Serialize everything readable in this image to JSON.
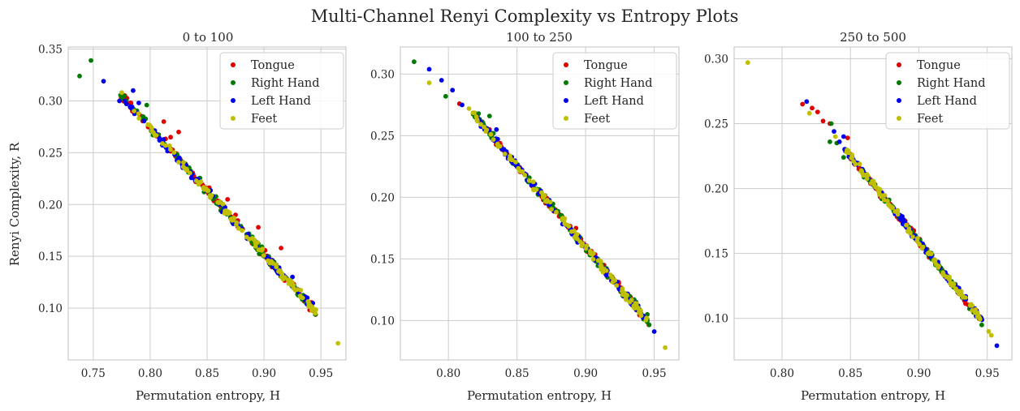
{
  "figure": {
    "suptitle": "Multi-Channel Renyi Complexity vs Entropy Plots"
  },
  "colors": {
    "Tongue": "#e00000",
    "Right Hand": "#007a00",
    "Left Hand": "#0000ee",
    "Feet": "#bfbf00"
  },
  "chart_data": [
    {
      "type": "scatter",
      "title": "0 to 100",
      "xlabel": "Permutation entropy, H",
      "ylabel": "Renyi Complexity, R",
      "xlim": [
        0.728,
        0.972
      ],
      "ylim": [
        0.05,
        0.352
      ],
      "xticks": [
        0.75,
        0.8,
        0.85,
        0.9,
        0.95
      ],
      "yticks": [
        0.1,
        0.15,
        0.2,
        0.25,
        0.3,
        0.35
      ],
      "grid": true,
      "legend": "top-right",
      "trend": {
        "x0": 0.775,
        "y0": 0.305,
        "x1": 0.945,
        "y1": 0.097,
        "spread": 0.006
      },
      "series": [
        {
          "name": "Tongue",
          "points": [
            [
              0.812,
              0.28
            ],
            [
              0.818,
              0.265
            ],
            [
              0.825,
              0.27
            ],
            [
              0.84,
              0.222
            ],
            [
              0.868,
              0.205
            ],
            [
              0.875,
              0.19
            ],
            [
              0.895,
              0.178
            ],
            [
              0.915,
              0.158
            ]
          ]
        },
        {
          "name": "Right Hand",
          "points": [
            [
              0.738,
              0.324
            ],
            [
              0.748,
              0.339
            ],
            [
              0.797,
              0.296
            ],
            [
              0.88,
              0.178
            ],
            [
              0.945,
              0.094
            ]
          ]
        },
        {
          "name": "Left Hand",
          "points": [
            [
              0.759,
              0.319
            ],
            [
              0.773,
              0.3
            ],
            [
              0.785,
              0.31
            ],
            [
              0.79,
              0.298
            ],
            [
              0.925,
              0.13
            ],
            [
              0.938,
              0.11
            ]
          ]
        },
        {
          "name": "Feet",
          "points": [
            [
              0.775,
              0.308
            ],
            [
              0.945,
              0.095
            ],
            [
              0.965,
              0.066
            ]
          ]
        }
      ]
    },
    {
      "type": "scatter",
      "title": "100 to 250",
      "xlabel": "Permutation entropy, H",
      "ylabel": "",
      "xlim": [
        0.765,
        0.968
      ],
      "ylim": [
        0.068,
        0.322
      ],
      "xticks": [
        0.8,
        0.85,
        0.9,
        0.95
      ],
      "yticks": [
        0.1,
        0.15,
        0.2,
        0.25,
        0.3
      ],
      "grid": true,
      "legend": "top-right",
      "trend": {
        "x0": 0.818,
        "y0": 0.268,
        "x1": 0.945,
        "y1": 0.1,
        "spread": 0.005
      },
      "series": [
        {
          "name": "Tongue",
          "points": [
            [
              0.808,
              0.276
            ],
            [
              0.83,
              0.255
            ],
            [
              0.878,
              0.19
            ],
            [
              0.893,
              0.175
            ],
            [
              0.945,
              0.1
            ]
          ]
        },
        {
          "name": "Right Hand",
          "points": [
            [
              0.775,
              0.31
            ],
            [
              0.798,
              0.282
            ],
            [
              0.822,
              0.268
            ],
            [
              0.83,
              0.266
            ],
            [
              0.945,
              0.105
            ]
          ]
        },
        {
          "name": "Left Hand",
          "points": [
            [
              0.786,
              0.304
            ],
            [
              0.795,
              0.295
            ],
            [
              0.803,
              0.287
            ],
            [
              0.81,
              0.275
            ],
            [
              0.835,
              0.255
            ],
            [
              0.95,
              0.091
            ]
          ]
        },
        {
          "name": "Feet",
          "points": [
            [
              0.786,
              0.293
            ],
            [
              0.815,
              0.272
            ],
            [
              0.958,
              0.078
            ]
          ]
        }
      ]
    },
    {
      "type": "scatter",
      "title": "250 to 500",
      "xlabel": "Permutation entropy, H",
      "ylabel": "",
      "xlim": [
        0.765,
        0.968
      ],
      "ylim": [
        0.068,
        0.309
      ],
      "xticks": [
        0.8,
        0.85,
        0.9,
        0.95
      ],
      "yticks": [
        0.1,
        0.15,
        0.2,
        0.25,
        0.3
      ],
      "grid": true,
      "legend": "top-right",
      "trend": {
        "x0": 0.845,
        "y0": 0.232,
        "x1": 0.945,
        "y1": 0.1,
        "spread": 0.004
      },
      "series": [
        {
          "name": "Tongue",
          "points": [
            [
              0.815,
              0.265
            ],
            [
              0.822,
              0.262
            ],
            [
              0.826,
              0.259
            ],
            [
              0.83,
              0.252
            ],
            [
              0.835,
              0.25
            ],
            [
              0.848,
              0.239
            ],
            [
              0.945,
              0.101
            ]
          ]
        },
        {
          "name": "Right Hand",
          "points": [
            [
              0.836,
              0.25
            ],
            [
              0.835,
              0.236
            ],
            [
              0.84,
              0.235
            ],
            [
              0.845,
              0.224
            ],
            [
              0.946,
              0.095
            ]
          ]
        },
        {
          "name": "Left Hand",
          "points": [
            [
              0.818,
              0.267
            ],
            [
              0.838,
              0.244
            ],
            [
              0.842,
              0.236
            ],
            [
              0.845,
              0.24
            ],
            [
              0.957,
              0.079
            ]
          ]
        },
        {
          "name": "Feet",
          "points": [
            [
              0.775,
              0.297
            ],
            [
              0.82,
              0.258
            ],
            [
              0.839,
              0.24
            ],
            [
              0.951,
              0.09
            ],
            [
              0.953,
              0.087
            ]
          ]
        }
      ]
    }
  ]
}
